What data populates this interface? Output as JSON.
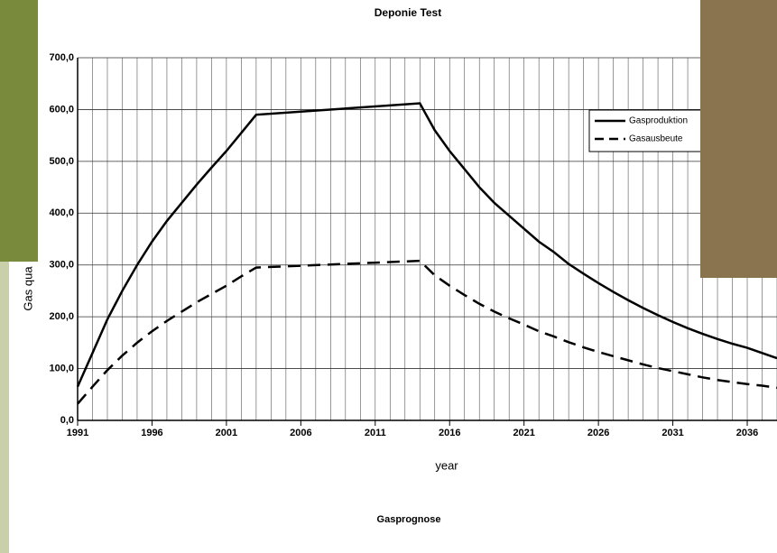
{
  "chart_data": {
    "type": "line",
    "title": "Deponie Test",
    "xlabel": "year",
    "ylabel": "Gas qua",
    "footnote": "Gasprognose",
    "x": [
      1991,
      1992,
      1993,
      1994,
      1995,
      1996,
      1997,
      1998,
      1999,
      2000,
      2001,
      2002,
      2003,
      2014,
      2015,
      2016,
      2017,
      2018,
      2019,
      2020,
      2021,
      2022,
      2023,
      2024,
      2025,
      2026,
      2027,
      2028,
      2029,
      2030,
      2031,
      2032,
      2033,
      2034,
      2035,
      2036,
      2037,
      2038
    ],
    "series": [
      {
        "name": "Gasproduktion",
        "color": "#000000",
        "dash": "solid",
        "values": [
          65,
          130,
          195,
          250,
          300,
          345,
          385,
          420,
          455,
          488,
          520,
          555,
          590,
          612,
          560,
          520,
          485,
          450,
          420,
          395,
          370,
          345,
          325,
          302,
          283,
          265,
          248,
          232,
          217,
          203,
          190,
          178,
          167,
          157,
          148,
          140,
          130,
          120
        ]
      },
      {
        "name": "Gasausbeute",
        "color": "#000000",
        "dash": "dashed",
        "values": [
          32,
          65,
          97,
          125,
          150,
          172,
          192,
          210,
          228,
          244,
          260,
          278,
          295,
          308,
          280,
          260,
          242,
          225,
          210,
          197,
          185,
          172,
          162,
          151,
          141,
          132,
          124,
          116,
          108,
          101,
          95,
          89,
          83,
          78,
          74,
          70,
          67,
          63
        ]
      }
    ],
    "xlim": [
      1991,
      2038
    ],
    "ylim": [
      0,
      700
    ],
    "xticks": [
      1991,
      1996,
      2001,
      2006,
      2011,
      2016,
      2021,
      2026,
      2031,
      2036
    ],
    "yticks": [
      {
        "value": 0,
        "label": "0,0"
      },
      {
        "value": 100,
        "label": "100,0"
      },
      {
        "value": 200,
        "label": "200,0"
      },
      {
        "value": 300,
        "label": "300,0"
      },
      {
        "value": 400,
        "label": "400,0"
      },
      {
        "value": 500,
        "label": "500,0"
      },
      {
        "value": 600,
        "label": "600,0"
      },
      {
        "value": 700,
        "label": "700,0"
      }
    ],
    "grid": true,
    "minor_xgrid": 1,
    "legend": "upper right"
  }
}
